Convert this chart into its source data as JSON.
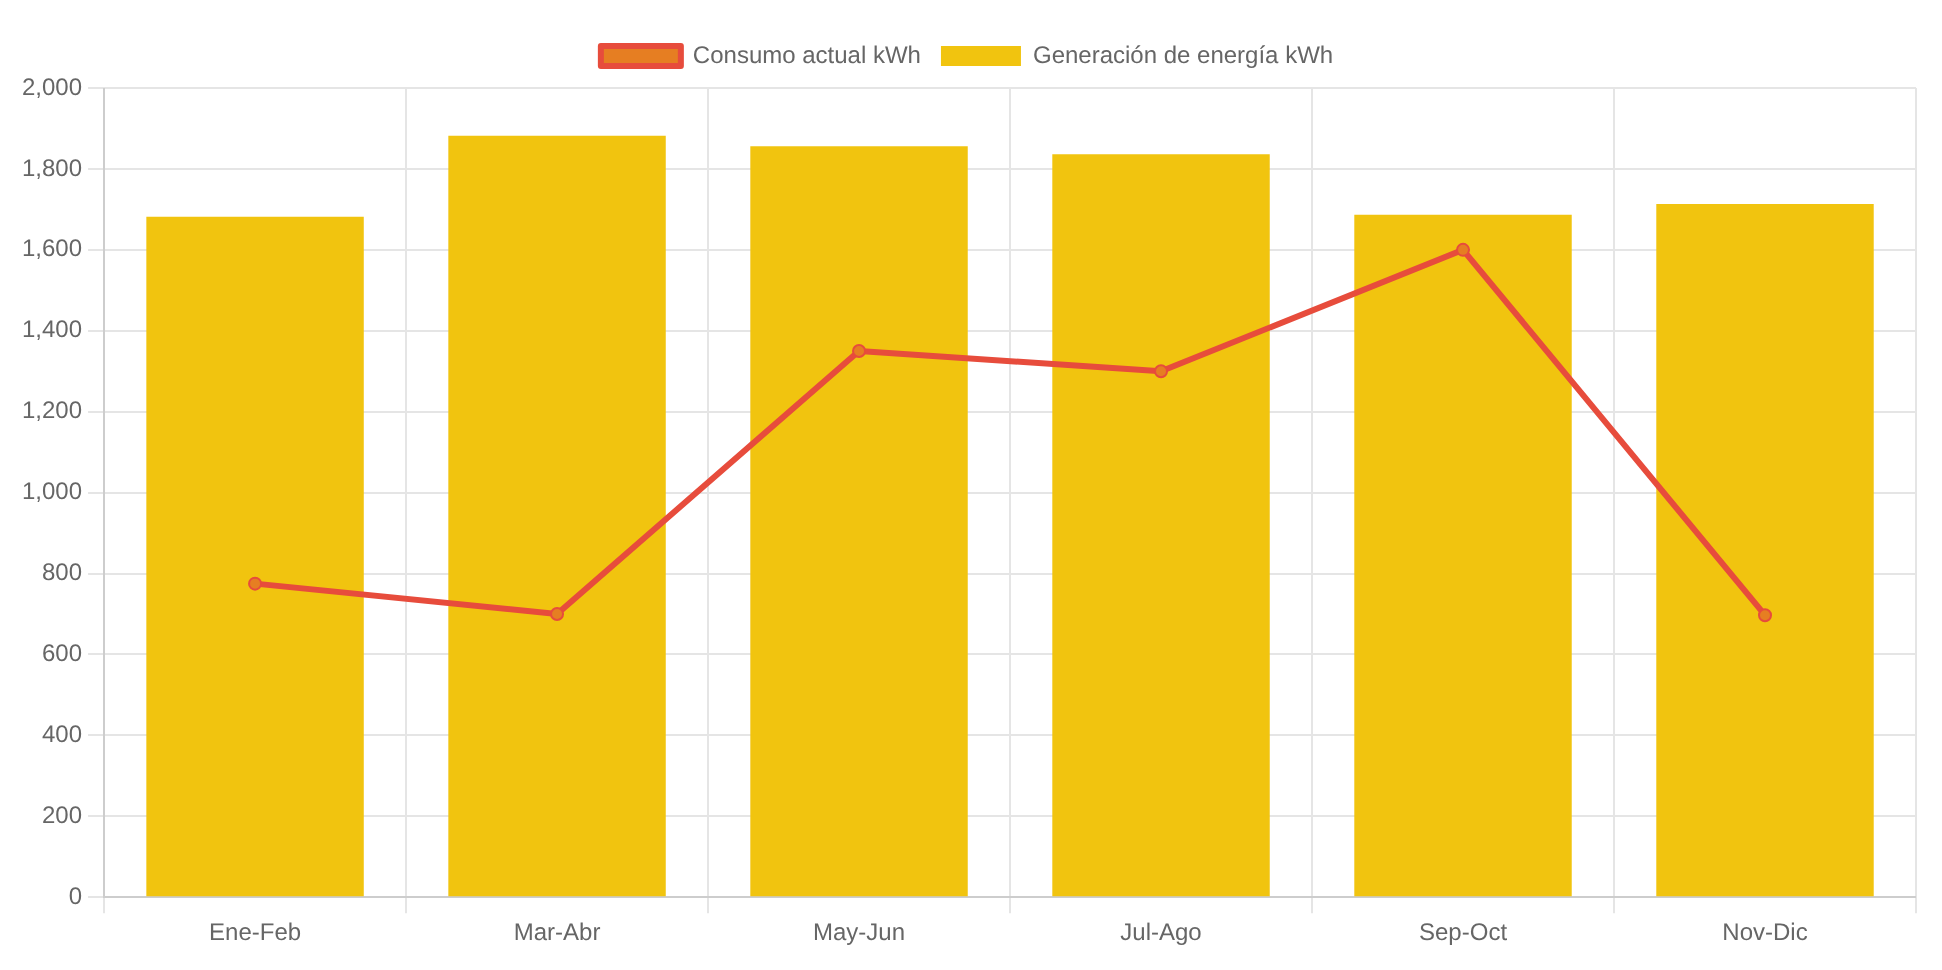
{
  "chart_data": {
    "type": "bar",
    "categories": [
      "Ene-Feb",
      "Mar-Abr",
      "May-Jun",
      "Jul-Ago",
      "Sep-Oct",
      "Nov-Dic"
    ],
    "series": [
      {
        "name": "Consumo actual kWh",
        "type": "line",
        "color": "#e74c3c",
        "values": [
          775,
          700,
          1350,
          1300,
          1600,
          697
        ]
      },
      {
        "name": "Generación de energía kWh",
        "color": "#f1c40f",
        "values": [
          1682,
          1882,
          1856,
          1836,
          1687,
          1713
        ]
      }
    ],
    "ylim": [
      0,
      2000
    ],
    "yticks": [
      0,
      200,
      400,
      600,
      800,
      {
        "value": 1000,
        "label": "1,000"
      },
      {
        "value": 1200,
        "label": "1,200"
      },
      {
        "value": 1400,
        "label": "1,400"
      },
      {
        "value": 1600,
        "label": "1,600"
      },
      {
        "value": 1800,
        "label": "1,800"
      },
      {
        "value": 2000,
        "label": "2,000"
      }
    ],
    "grid": true,
    "legend": "top",
    "marker": "circle",
    "line_style": "solid"
  }
}
